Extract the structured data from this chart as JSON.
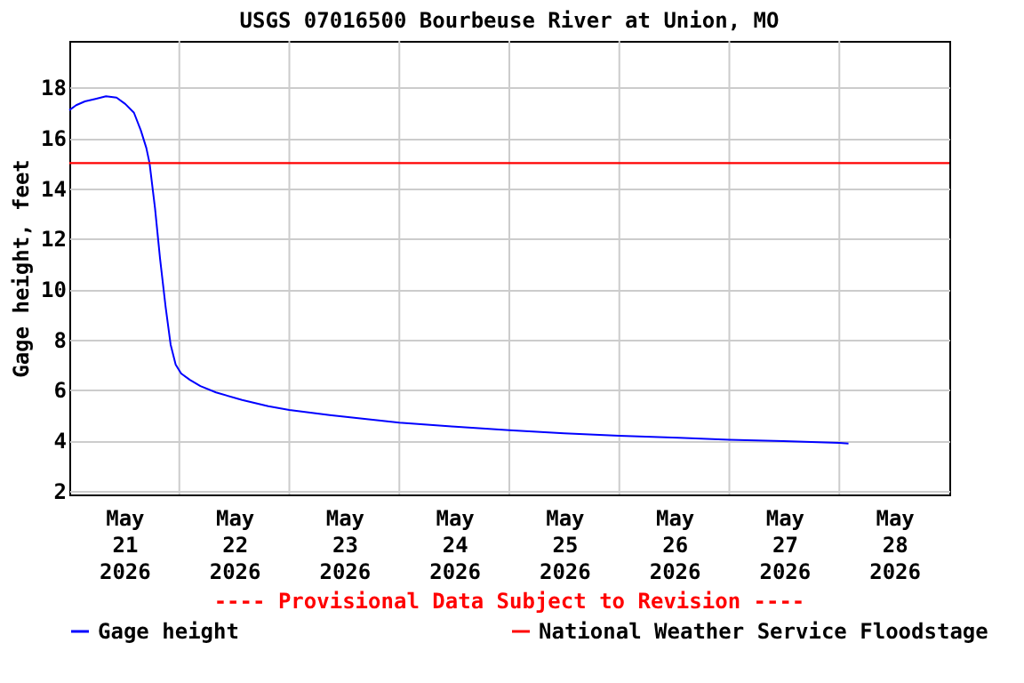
{
  "chart_data": {
    "type": "line",
    "title": "USGS 07016500 Bourbeuse River at Union, MO",
    "ylabel": "Gage height, feet",
    "annotations": [
      "---- Provisional Data Subject to Revision ----"
    ],
    "x": [
      "2026-05-21T00:00",
      "2026-05-21T01:30",
      "2026-05-21T03:24",
      "2026-05-21T05:42",
      "2026-05-21T08:00",
      "2026-05-21T10:18",
      "2026-05-21T12:12",
      "2026-05-21T14:06",
      "2026-05-21T15:36",
      "2026-05-21T16:48",
      "2026-05-21T17:30",
      "2026-05-21T18:42",
      "2026-05-21T19:48",
      "2026-05-21T21:00",
      "2026-05-21T22:06",
      "2026-05-21T23:12",
      "2026-05-22T00:24",
      "2026-05-22T02:18",
      "2026-05-22T04:36",
      "2026-05-22T08:00",
      "2026-05-22T13:42",
      "2026-05-22T19:24",
      "2026-05-23T00:00",
      "2026-05-23T08:48",
      "2026-05-23T16:24",
      "2026-05-24T00:00",
      "2026-05-24T11:24",
      "2026-05-25T00:00",
      "2026-05-25T12:00",
      "2026-05-26T00:00",
      "2026-05-26T13:00",
      "2026-05-27T00:00",
      "2026-05-27T11:48",
      "2026-05-28T00:00",
      "2026-05-28T02:00"
    ],
    "series": [
      {
        "name": "Gage height",
        "color": "#0000ff",
        "values": [
          17.1,
          17.3,
          17.45,
          17.55,
          17.65,
          17.6,
          17.35,
          17.0,
          16.3,
          15.6,
          15.0,
          13.2,
          11.2,
          9.3,
          7.8,
          7.0,
          6.65,
          6.4,
          6.15,
          5.9,
          5.6,
          5.35,
          5.2,
          5.0,
          4.85,
          4.7,
          4.55,
          4.4,
          4.28,
          4.18,
          4.1,
          4.02,
          3.97,
          3.9,
          3.87
        ]
      }
    ],
    "ref_lines": [
      {
        "axis": "y",
        "value": 15,
        "label": "National Weather Service Floodstage",
        "color": "#ff0000"
      }
    ],
    "xlim": [
      "2026-05-21T00:00",
      "2026-05-29T00:00"
    ],
    "xticks": [
      {
        "value": "2026-05-21T12:00",
        "label": "May\n21\n2026"
      },
      {
        "value": "2026-05-22T00:00",
        "label": null
      },
      {
        "value": "2026-05-22T12:00",
        "label": "May\n22\n2026"
      },
      {
        "value": "2026-05-23T00:00",
        "label": null
      },
      {
        "value": "2026-05-23T12:00",
        "label": "May\n23\n2026"
      },
      {
        "value": "2026-05-24T00:00",
        "label": null
      },
      {
        "value": "2026-05-24T12:00",
        "label": "May\n24\n2026"
      },
      {
        "value": "2026-05-25T00:00",
        "label": null
      },
      {
        "value": "2026-05-25T12:00",
        "label": "May\n25\n2026"
      },
      {
        "value": "2026-05-26T00:00",
        "label": null
      },
      {
        "value": "2026-05-26T12:00",
        "label": "May\n26\n2026"
      },
      {
        "value": "2026-05-27T00:00",
        "label": null
      },
      {
        "value": "2026-05-27T12:00",
        "label": "May\n27\n2026"
      },
      {
        "value": "2026-05-28T00:00",
        "label": null
      },
      {
        "value": "2026-05-28T12:00",
        "label": "May\n28\n2026"
      }
    ],
    "ylim": [
      1.85,
      19.85
    ],
    "yticks": [
      2,
      4,
      6,
      8,
      10,
      12,
      14,
      16,
      18
    ],
    "grid": true,
    "legend": "bottom",
    "marker": "none",
    "line_style": "solid"
  }
}
